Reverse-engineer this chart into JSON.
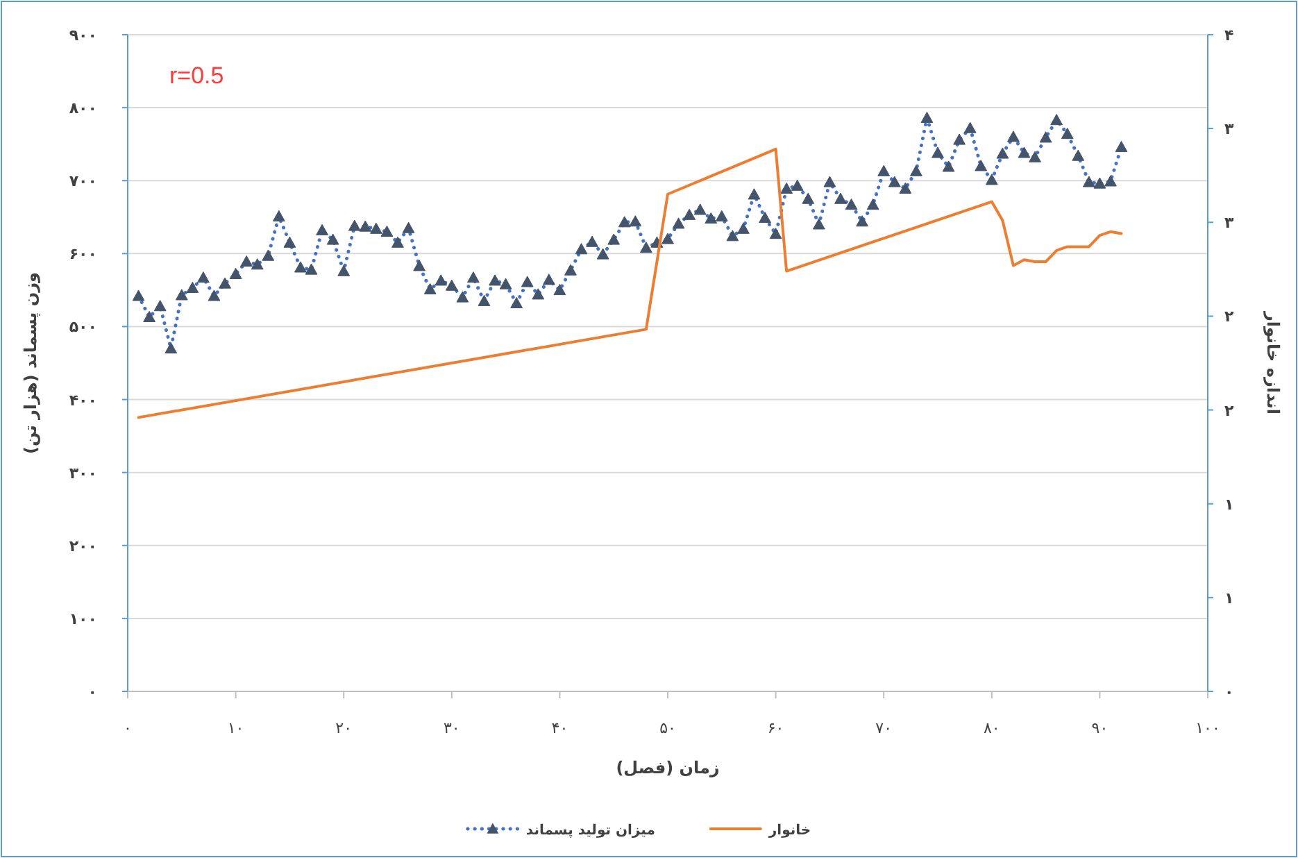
{
  "chart_data": {
    "type": "line",
    "xlabel": "زمان (فصل)",
    "ylabel": "وزن پسماند (هزار تن)",
    "y2label": "اندازه خانوار",
    "annotations": [
      "r=0.5"
    ],
    "x": [
      1,
      2,
      3,
      4,
      5,
      6,
      7,
      8,
      9,
      10,
      11,
      12,
      13,
      14,
      15,
      16,
      17,
      18,
      19,
      20,
      21,
      22,
      23,
      24,
      25,
      26,
      27,
      28,
      29,
      30,
      31,
      32,
      33,
      34,
      35,
      36,
      37,
      38,
      39,
      40,
      41,
      42,
      43,
      44,
      45,
      46,
      47,
      48,
      49,
      50,
      51,
      52,
      53,
      54,
      55,
      56,
      57,
      58,
      59,
      60,
      61,
      62,
      63,
      64,
      65,
      66,
      67,
      68,
      69,
      70,
      71,
      72,
      73,
      74,
      75,
      76,
      77,
      78,
      79,
      80,
      81,
      82,
      83,
      84,
      85,
      86,
      87,
      88,
      89,
      90,
      91,
      92
    ],
    "series": [
      {
        "name": "میزان تولید پسماند",
        "color": "#4472c4",
        "marker": "triangle",
        "line_style": "dotted",
        "values": [
          542,
          513,
          528,
          470,
          543,
          553,
          567,
          542,
          559,
          572,
          589,
          585,
          597,
          651,
          615,
          581,
          578,
          632,
          619,
          576,
          638,
          637,
          634,
          630,
          615,
          635,
          583,
          551,
          563,
          556,
          540,
          567,
          535,
          563,
          558,
          532,
          561,
          544,
          564,
          550,
          577,
          606,
          616,
          599,
          619,
          643,
          644,
          608,
          615,
          620,
          641,
          653,
          660,
          648,
          651,
          624,
          634,
          681,
          649,
          627,
          689,
          693,
          675,
          640,
          698,
          675,
          667,
          644,
          667,
          713,
          698,
          689,
          713,
          786,
          738,
          719,
          756,
          772,
          720,
          701,
          737,
          760,
          738,
          732,
          759,
          783,
          764,
          734,
          698,
          696,
          699,
          746
        ]
      },
      {
        "name": "خانوار",
        "color": "#ed7d31",
        "axis": "y2",
        "marker": "none",
        "line_style": "solid",
        "x": [
          1,
          48,
          50,
          60,
          61,
          80,
          81,
          82,
          83,
          84,
          85,
          86,
          87,
          88,
          89,
          90,
          91,
          92
        ],
        "values": [
          1.46,
          1.93,
          2.65,
          2.89,
          2.24,
          2.61,
          2.51,
          2.27,
          2.3,
          2.29,
          2.29,
          2.35,
          2.37,
          2.37,
          2.37,
          2.43,
          2.45,
          2.44
        ]
      }
    ],
    "xlim": [
      0,
      100
    ],
    "xticks": [
      {
        "value": 0,
        "label": "۰"
      },
      {
        "value": 10,
        "label": "۱۰"
      },
      {
        "value": 20,
        "label": "۲۰"
      },
      {
        "value": 30,
        "label": "۳۰"
      },
      {
        "value": 40,
        "label": "۴۰"
      },
      {
        "value": 50,
        "label": "۵۰"
      },
      {
        "value": 60,
        "label": "۶۰"
      },
      {
        "value": 70,
        "label": "۷۰"
      },
      {
        "value": 80,
        "label": "۸۰"
      },
      {
        "value": 90,
        "label": "۹۰"
      },
      {
        "value": 100,
        "label": "۱۰۰"
      }
    ],
    "ylim": [
      0,
      900
    ],
    "yticks": [
      {
        "value": 0,
        "label": "۰"
      },
      {
        "value": 100,
        "label": "۱۰۰"
      },
      {
        "value": 200,
        "label": "۲۰۰"
      },
      {
        "value": 300,
        "label": "۳۰۰"
      },
      {
        "value": 400,
        "label": "۴۰۰"
      },
      {
        "value": 500,
        "label": "۵۰۰"
      },
      {
        "value": 600,
        "label": "۶۰۰"
      },
      {
        "value": 700,
        "label": "۷۰۰"
      },
      {
        "value": 800,
        "label": "۸۰۰"
      },
      {
        "value": 900,
        "label": "۹۰۰"
      }
    ],
    "y2lim": [
      0,
      3.5
    ],
    "y2ticks": [
      {
        "value": 0,
        "label": "۰"
      },
      {
        "value": 0.5,
        "label": "۱"
      },
      {
        "value": 1,
        "label": "۱"
      },
      {
        "value": 1.5,
        "label": "۲"
      },
      {
        "value": 2,
        "label": "۲"
      },
      {
        "value": 2.5,
        "label": "۳"
      },
      {
        "value": 3,
        "label": "۳"
      },
      {
        "value": 3.5,
        "label": "۴"
      }
    ],
    "grid": "y",
    "legend": "bottom"
  }
}
